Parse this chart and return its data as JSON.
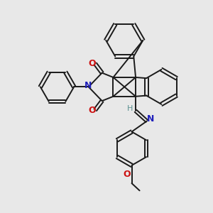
{
  "bg_color": "#e8e8e8",
  "bond_color": "#1a1a1a",
  "N_color": "#2020bb",
  "O_color": "#cc1111",
  "H_color": "#5a9090",
  "figsize": [
    3.0,
    3.0
  ],
  "dpi": 100,
  "xlim": [
    -1.6,
    1.8
  ],
  "ylim": [
    -1.9,
    1.9
  ]
}
